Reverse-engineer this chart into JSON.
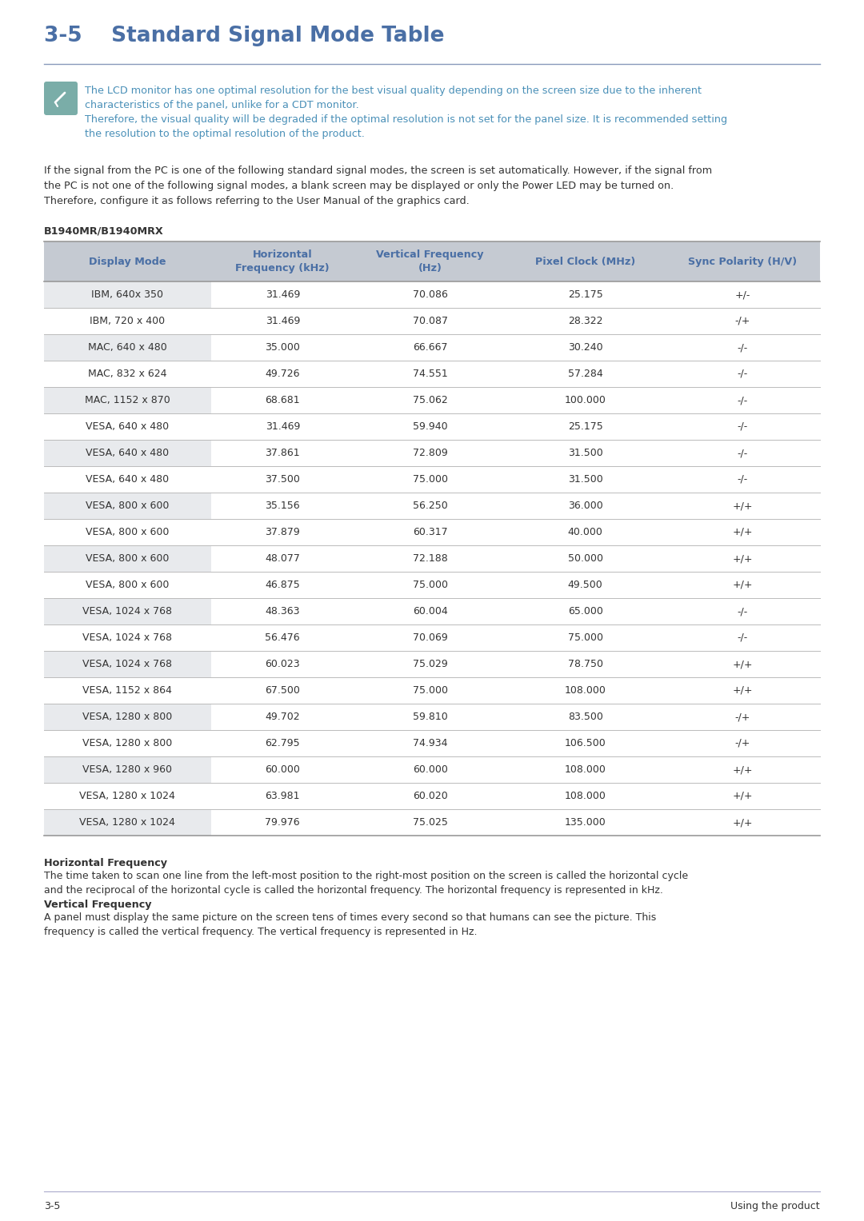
{
  "title": "3-5    Standard Signal Mode Table",
  "title_color": "#4a6fa5",
  "note_text_1": "The LCD monitor has one optimal resolution for the best visual quality depending on the screen size due to the inherent\ncharacteristics of the panel, unlike for a CDT monitor.",
  "note_text_2": "Therefore, the visual quality will be degraded if the optimal resolution is not set for the panel size. It is recommended setting\nthe resolution to the optimal resolution of the product.",
  "body_text": "If the signal from the PC is one of the following standard signal modes, the screen is set automatically. However, if the signal from\nthe PC is not one of the following signal modes, a blank screen may be displayed or only the Power LED may be turned on.\nTherefore, configure it as follows referring to the User Manual of the graphics card.",
  "model_label": "B1940MR/B1940MRX",
  "col_headers": [
    "Display Mode",
    "Horizontal\nFrequency (kHz)",
    "Vertical Frequency\n(Hz)",
    "Pixel Clock (MHz)",
    "Sync Polarity (H/V)"
  ],
  "header_color": "#4a6fa5",
  "header_bg": "#c5cad2",
  "row_bg_alt": "#e8eaed",
  "row_bg_main": "#ffffff",
  "table_data": [
    [
      "IBM, 640x 350",
      "31.469",
      "70.086",
      "25.175",
      "+/-"
    ],
    [
      "IBM, 720 x 400",
      "31.469",
      "70.087",
      "28.322",
      "-/+"
    ],
    [
      "MAC, 640 x 480",
      "35.000",
      "66.667",
      "30.240",
      "-/-"
    ],
    [
      "MAC, 832 x 624",
      "49.726",
      "74.551",
      "57.284",
      "-/-"
    ],
    [
      "MAC, 1152 x 870",
      "68.681",
      "75.062",
      "100.000",
      "-/-"
    ],
    [
      "VESA, 640 x 480",
      "31.469",
      "59.940",
      "25.175",
      "-/-"
    ],
    [
      "VESA, 640 x 480",
      "37.861",
      "72.809",
      "31.500",
      "-/-"
    ],
    [
      "VESA, 640 x 480",
      "37.500",
      "75.000",
      "31.500",
      "-/-"
    ],
    [
      "VESA, 800 x 600",
      "35.156",
      "56.250",
      "36.000",
      "+/+"
    ],
    [
      "VESA, 800 x 600",
      "37.879",
      "60.317",
      "40.000",
      "+/+"
    ],
    [
      "VESA, 800 x 600",
      "48.077",
      "72.188",
      "50.000",
      "+/+"
    ],
    [
      "VESA, 800 x 600",
      "46.875",
      "75.000",
      "49.500",
      "+/+"
    ],
    [
      "VESA, 1024 x 768",
      "48.363",
      "60.004",
      "65.000",
      "-/-"
    ],
    [
      "VESA, 1024 x 768",
      "56.476",
      "70.069",
      "75.000",
      "-/-"
    ],
    [
      "VESA, 1024 x 768",
      "60.023",
      "75.029",
      "78.750",
      "+/+"
    ],
    [
      "VESA, 1152 x 864",
      "67.500",
      "75.000",
      "108.000",
      "+/+"
    ],
    [
      "VESA, 1280 x 800",
      "49.702",
      "59.810",
      "83.500",
      "-/+"
    ],
    [
      "VESA, 1280 x 800",
      "62.795",
      "74.934",
      "106.500",
      "-/+"
    ],
    [
      "VESA, 1280 x 960",
      "60.000",
      "60.000",
      "108.000",
      "+/+"
    ],
    [
      "VESA, 1280 x 1024",
      "63.981",
      "60.020",
      "108.000",
      "+/+"
    ],
    [
      "VESA, 1280 x 1024",
      "79.976",
      "75.025",
      "135.000",
      "+/+"
    ]
  ],
  "hf_title": "Horizontal Frequency",
  "hf_text": "The time taken to scan one line from the left-most position to the right-most position on the screen is called the horizontal cycle\nand the reciprocal of the horizontal cycle is called the horizontal frequency. The horizontal frequency is represented in kHz.",
  "vf_title": "Vertical Frequency",
  "vf_text": "A panel must display the same picture on the screen tens of times every second so that humans can see the picture. This\nfrequency is called the vertical frequency. The vertical frequency is represented in Hz.",
  "footer_left": "3-5",
  "footer_right": "Using the product",
  "page_bg": "#ffffff",
  "text_color": "#333333",
  "note_color": "#4a90b8",
  "icon_bg": "#7aada8",
  "icon_border": "#6a9d98",
  "divider_color": "#8899bb",
  "footer_line_color": "#aaaacc"
}
